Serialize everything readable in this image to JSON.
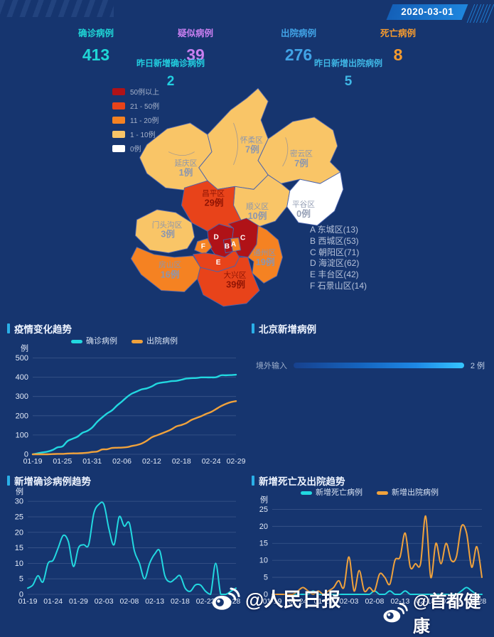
{
  "header": {
    "date": "2020-03-01"
  },
  "stats": {
    "items": [
      {
        "label": "确诊病例",
        "value": "413",
        "color": "#1fd6d6"
      },
      {
        "label": "疑似病例",
        "value": "39",
        "color": "#c87ff0"
      },
      {
        "label": "出院病例",
        "value": "276",
        "color": "#41a3e6"
      },
      {
        "label": "死亡病例",
        "value": "8",
        "color": "#f59a2e"
      }
    ],
    "sub_items": [
      {
        "label": "昨日新增确诊病例",
        "value": "2",
        "color": "#22cfe0"
      },
      {
        "label": "昨日新增出院病例",
        "value": "5",
        "color": "#3fb7e6"
      }
    ]
  },
  "map": {
    "legend": [
      {
        "label": "50例以上",
        "color": "#b01217"
      },
      {
        "label": "21 - 50例",
        "color": "#e8431a"
      },
      {
        "label": "11 - 20例",
        "color": "#f58222"
      },
      {
        "label": "1 - 10例",
        "color": "#f9c567"
      },
      {
        "label": "0例",
        "color": "#ffffff"
      }
    ],
    "districts": [
      {
        "name": "延庆区",
        "cases": "1例"
      },
      {
        "name": "怀柔区",
        "cases": "7例"
      },
      {
        "name": "密云区",
        "cases": "7例"
      },
      {
        "name": "平谷区",
        "cases": "0例"
      },
      {
        "name": "顺义区",
        "cases": "10例"
      },
      {
        "name": "昌平区",
        "cases": "29例"
      },
      {
        "name": "门头沟区",
        "cases": "3例"
      },
      {
        "name": "房山区",
        "cases": "16例"
      },
      {
        "name": "大兴区",
        "cases": "39例"
      },
      {
        "name": "通州区",
        "cases": "19例"
      }
    ],
    "letters": [
      "A",
      "B",
      "C",
      "D",
      "E",
      "F"
    ],
    "district_list": [
      "A 东城区(13)",
      "B 西城区(53)",
      "C 朝阳区(71)",
      "D 海淀区(62)",
      "E 丰台区(42)",
      "F 石景山区(14)"
    ]
  },
  "chart_data": [
    {
      "type": "line",
      "title": "疫情变化趋势",
      "ylabel": "例",
      "ylim": [
        0,
        500
      ],
      "yticks": [
        0,
        100,
        200,
        300,
        400,
        500
      ],
      "n": 42,
      "pad_left": 34,
      "line_width": 2.4,
      "x_tick_index": [
        0,
        6,
        12,
        18,
        24,
        30,
        36,
        41
      ],
      "x_tick_labels": [
        "01-19",
        "01-25",
        "01-31",
        "02-06",
        "02-12",
        "02-18",
        "02-24",
        "02-29"
      ],
      "series": [
        {
          "name": "确诊病例",
          "color": "#22d8e0",
          "values": [
            0,
            5,
            10,
            14,
            22,
            36,
            41,
            68,
            80,
            91,
            111,
            121,
            139,
            168,
            191,
            212,
            228,
            253,
            274,
            297,
            315,
            326,
            337,
            342,
            352,
            366,
            372,
            375,
            380,
            381,
            387,
            393,
            395,
            396,
            399,
            399,
            399,
            400,
            410,
            410,
            411,
            413
          ]
        },
        {
          "name": "出院病例",
          "color": "#f0a23c",
          "values": [
            0,
            0,
            0,
            0,
            1,
            2,
            2,
            4,
            5,
            5,
            6,
            8,
            12,
            14,
            25,
            26,
            33,
            34,
            35,
            37,
            43,
            48,
            56,
            70,
            88,
            98,
            108,
            118,
            130,
            145,
            152,
            162,
            178,
            188,
            198,
            210,
            220,
            235,
            250,
            262,
            271,
            276
          ]
        }
      ]
    },
    {
      "type": "bar",
      "title": "北京新增病例",
      "categories": [
        "境外输入"
      ],
      "values": [
        2
      ],
      "unit": "例",
      "value_label": "2 例",
      "bar_color_start": "#17418e",
      "bar_color_end": "#35c5ff"
    },
    {
      "type": "line",
      "title": "新增确诊病例趋势",
      "ylabel": "例",
      "ylim": [
        0,
        30
      ],
      "yticks": [
        0,
        5,
        10,
        15,
        20,
        25,
        30
      ],
      "n": 42,
      "pad_left": 27,
      "line_width": 2,
      "x_tick_index": [
        0,
        5,
        10,
        15,
        20,
        25,
        30,
        35,
        40
      ],
      "x_tick_labels": [
        "01-19",
        "01-24",
        "01-29",
        "02-03",
        "02-08",
        "02-13",
        "02-18",
        "02-23",
        "02-28"
      ],
      "series": [
        {
          "name": "新增确诊病例",
          "color": "#22d8e0",
          "values": [
            2,
            3,
            6,
            4,
            10,
            11,
            15,
            19,
            17,
            9,
            15,
            16,
            16,
            26,
            29,
            29,
            21,
            16,
            25,
            22,
            23,
            14,
            10,
            5,
            10,
            13,
            14,
            6,
            4,
            5,
            6,
            2,
            1,
            3,
            3,
            1,
            0,
            10,
            0,
            0,
            1,
            2
          ]
        }
      ]
    },
    {
      "type": "line",
      "title": "新增死亡及出院趋势",
      "ylabel": "例",
      "ylim": [
        0,
        25
      ],
      "yticks": [
        0,
        5,
        10,
        15,
        20,
        25
      ],
      "n": 42,
      "pad_left": 27,
      "line_width": 2,
      "x_tick_index": [
        0,
        5,
        10,
        15,
        20,
        25,
        30,
        35,
        40
      ],
      "x_tick_labels": [
        "01-19",
        "01-24",
        "01-29",
        "02-03",
        "02-08",
        "02-13",
        "02-18",
        "02-23",
        "02-28"
      ],
      "series": [
        {
          "name": "新增死亡病例",
          "color": "#22d8e0",
          "values": [
            0,
            0,
            0,
            0,
            0,
            0,
            0,
            0,
            1,
            0,
            0,
            0,
            0,
            0,
            0,
            0,
            0,
            0,
            0,
            0,
            1,
            0,
            0,
            1,
            0,
            0,
            1,
            0,
            0,
            0,
            0,
            0,
            0,
            0,
            0,
            0,
            0,
            1,
            2,
            1,
            0,
            0
          ]
        },
        {
          "name": "新增出院病例",
          "color": "#f0a23c",
          "values": [
            0,
            0,
            0,
            0,
            0,
            1,
            2,
            1,
            0,
            1,
            0,
            1,
            2,
            4,
            2,
            11,
            1,
            7,
            1,
            2,
            1,
            6,
            5,
            3,
            10,
            11,
            18,
            8,
            9,
            9,
            23,
            5,
            15,
            9,
            15,
            10,
            11,
            20,
            18,
            8,
            14,
            5
          ]
        }
      ]
    }
  ],
  "watermarks": {
    "left": "@人民日报",
    "right": "@首都健康"
  }
}
